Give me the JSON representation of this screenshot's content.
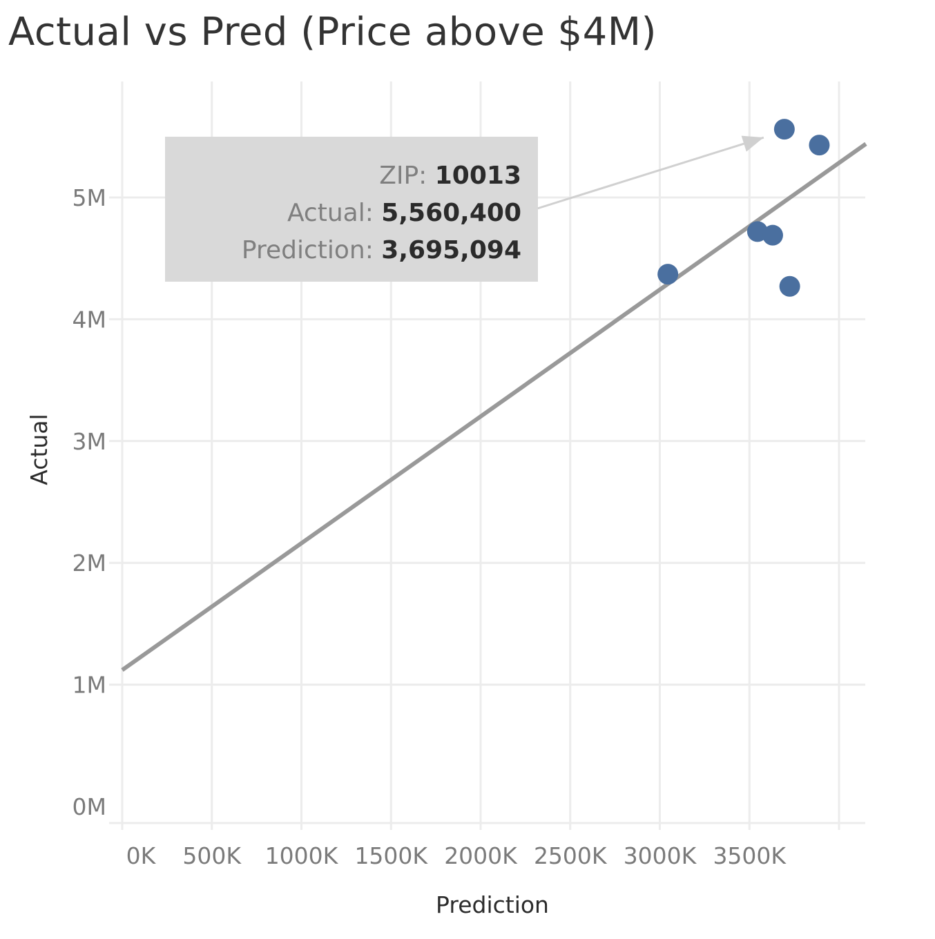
{
  "chart_data": {
    "type": "scatter",
    "title": "Actual vs Pred (Price above $4M)",
    "xlabel": "Prediction",
    "ylabel": "Actual",
    "xlim": [
      0,
      4150000
    ],
    "ylim": [
      -120000,
      5800000
    ],
    "x_ticks": [
      0,
      500000,
      1000000,
      1500000,
      2000000,
      2500000,
      3000000,
      3500000,
      4000000
    ],
    "x_tick_labels": [
      "0K",
      "500K",
      "1000K",
      "1500K",
      "2000K",
      "2500K",
      "3000K",
      "3500K",
      ""
    ],
    "y_ticks": [
      0,
      1000000,
      2000000,
      3000000,
      4000000,
      5000000
    ],
    "y_tick_labels": [
      "0M",
      "1M",
      "2M",
      "3M",
      "4M",
      "5M"
    ],
    "grid": true,
    "points": [
      {
        "x": 3695094,
        "y": 5560400
      },
      {
        "x": 3890000,
        "y": 5430000
      },
      {
        "x": 3545000,
        "y": 4720000
      },
      {
        "x": 3630000,
        "y": 4690000
      },
      {
        "x": 3045000,
        "y": 4370000
      },
      {
        "x": 3725000,
        "y": 4270000
      }
    ],
    "trend_line": {
      "x": [
        0,
        4150000
      ],
      "y": [
        1120000,
        5440000
      ]
    },
    "annotation": {
      "target_point": 0,
      "rows": [
        {
          "key": "ZIP:",
          "value": "10013"
        },
        {
          "key": "Actual:",
          "value": "5,560,400"
        },
        {
          "key": "Prediction:",
          "value": "3,695,094"
        }
      ]
    },
    "colors": {
      "point": "#4a6f9f",
      "trend": "#999999",
      "grid": "#ececec",
      "tooltip_bg": "#d9d9d9",
      "arrow": "#d0d0d0"
    }
  }
}
